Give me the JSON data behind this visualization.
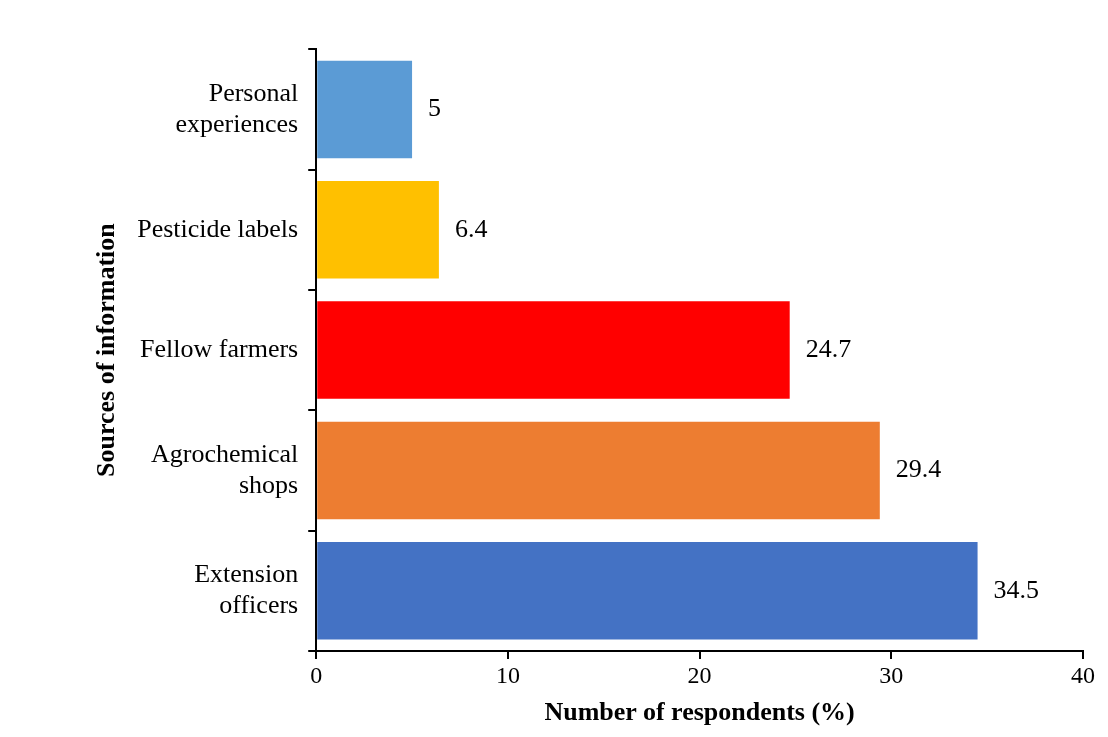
{
  "chart_data": {
    "type": "bar",
    "orientation": "horizontal",
    "xlabel": "Number of respondents (%)",
    "ylabel": "Sources of information",
    "categories": [
      "Personal experiences",
      "Pesticide labels",
      "Fellow farmers",
      "Agrochemical shops",
      "Extension officers"
    ],
    "values": [
      5,
      6.4,
      24.7,
      29.4,
      34.5
    ],
    "colors": [
      "#5b9bd5",
      "#ffc000",
      "#ff0000",
      "#ed7d31",
      "#4472c4"
    ],
    "xlim": [
      0,
      40
    ],
    "xticks": [
      0,
      10,
      20,
      30,
      40
    ],
    "grid": false,
    "legend": false,
    "data_labels": true
  }
}
